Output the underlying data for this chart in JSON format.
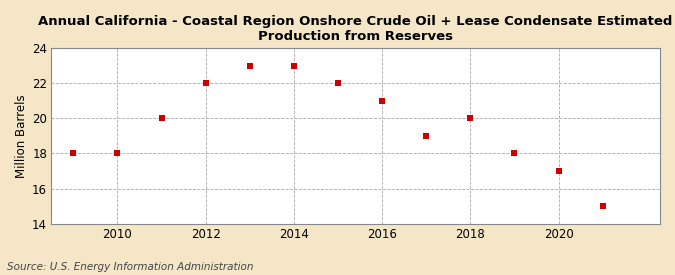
{
  "title": "Annual California - Coastal Region Onshore Crude Oil + Lease Condensate Estimated\nProduction from Reserves",
  "ylabel": "Million Barrels",
  "source": "Source: U.S. Energy Information Administration",
  "years": [
    2009,
    2010,
    2011,
    2012,
    2013,
    2014,
    2015,
    2016,
    2017,
    2018,
    2019,
    2020,
    2021
  ],
  "values": [
    18.0,
    18.0,
    20.0,
    22.0,
    23.0,
    23.0,
    22.0,
    21.0,
    19.0,
    20.0,
    18.0,
    17.0,
    15.0
  ],
  "ylim": [
    14,
    24
  ],
  "yticks": [
    14,
    16,
    18,
    20,
    22,
    24
  ],
  "xlim": [
    2008.5,
    2022.3
  ],
  "xticks": [
    2010,
    2012,
    2014,
    2016,
    2018,
    2020
  ],
  "marker_color": "#CC0000",
  "marker_style": "s",
  "marker_size": 4,
  "fig_background_color": "#F5E6C8",
  "plot_background_color": "#FFFFFF",
  "grid_color": "#AAAAAA",
  "title_fontsize": 9.5,
  "axis_fontsize": 8.5,
  "source_fontsize": 7.5,
  "spine_color": "#888888"
}
